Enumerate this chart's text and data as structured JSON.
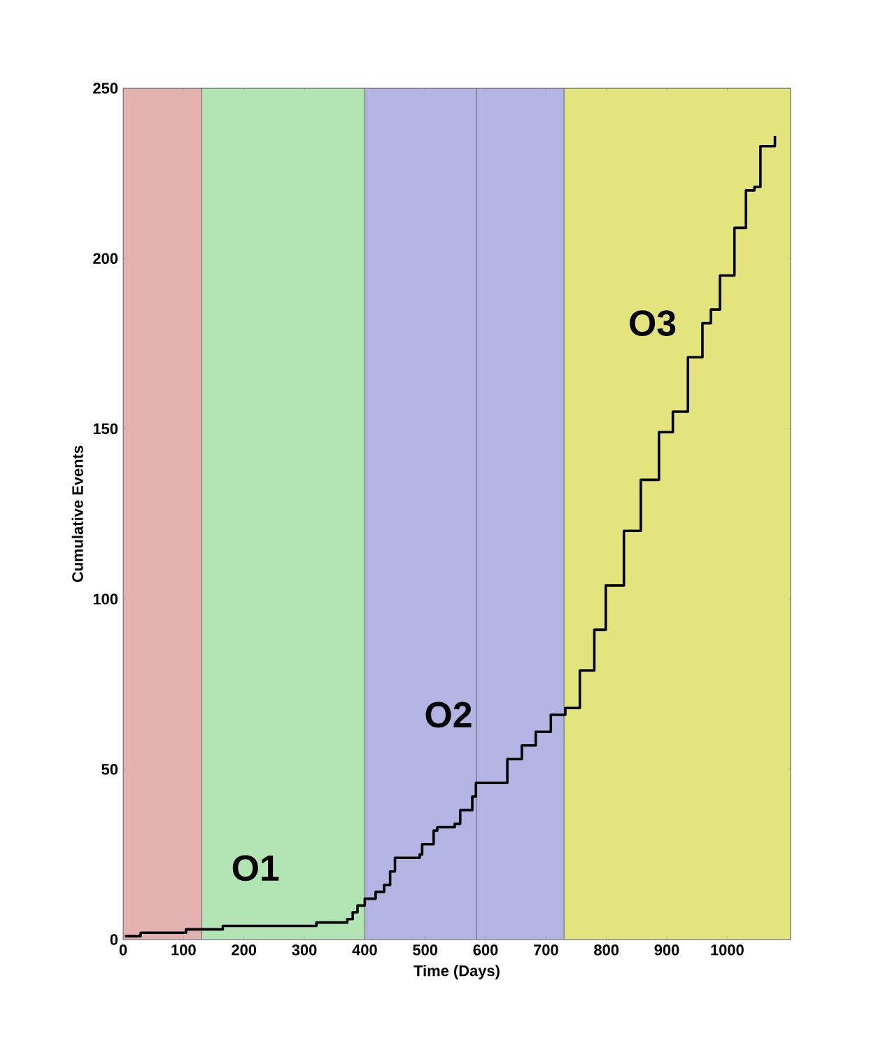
{
  "chart_data": {
    "type": "step",
    "xlabel": "Time (Days)",
    "ylabel": "Cumulative Events",
    "xlim": [
      0,
      1105
    ],
    "ylim": [
      0,
      250
    ],
    "xticks": [
      0,
      100,
      200,
      300,
      400,
      500,
      600,
      700,
      800,
      900,
      1000
    ],
    "yticks": [
      0,
      50,
      100,
      150,
      200,
      250
    ],
    "bands": [
      {
        "axis": "x",
        "from": 0,
        "to": 130,
        "color": "#e4b1b1"
      },
      {
        "axis": "x",
        "from": 130,
        "to": 400,
        "color": "#b3e4b3",
        "label": "O1"
      },
      {
        "axis": "x",
        "from": 400,
        "to": 730,
        "color": "#b3b3e4",
        "label": "O2"
      },
      {
        "axis": "x",
        "from": 730,
        "to": 1105,
        "color": "#e4e47e",
        "label": "O3"
      }
    ],
    "ref_lines": [
      {
        "axis": "x",
        "value": 585,
        "color": "#6a6a8a"
      }
    ],
    "series": [
      {
        "color": "#000000",
        "x": [
          3,
          29,
          104,
          165,
          320,
          371,
          380,
          388,
          400,
          418,
          432,
          442,
          450,
          491,
          495,
          514,
          520,
          549,
          558,
          578,
          584,
          611,
          636,
          660,
          683,
          708,
          732,
          756,
          780,
          799,
          829,
          857,
          887,
          910,
          935,
          959,
          973,
          988,
          1012,
          1031,
          1045,
          1055,
          1079
        ],
        "values": [
          1,
          2,
          3,
          4,
          5,
          6,
          8,
          10,
          12,
          14,
          16,
          20,
          24,
          25,
          28,
          32,
          33,
          34,
          38,
          42,
          46,
          46,
          53,
          57,
          61,
          66,
          68,
          79,
          91,
          104,
          120,
          135,
          149,
          155,
          171,
          181,
          185,
          195,
          209,
          220,
          221,
          233,
          236
        ]
      }
    ]
  }
}
